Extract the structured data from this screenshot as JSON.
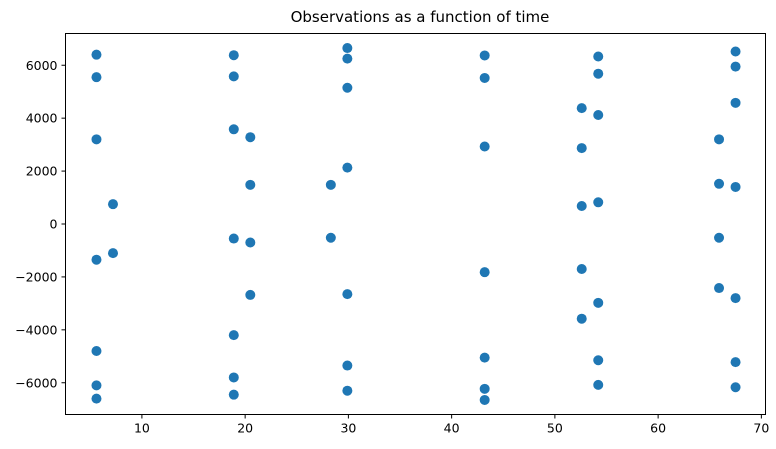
{
  "chart_data": {
    "type": "scatter",
    "title": "Observations as a function of time",
    "xlabel": "",
    "ylabel": "",
    "xlim": [
      2.6,
      70.4
    ],
    "ylim": [
      -7200,
      7200
    ],
    "xticks": [
      10,
      20,
      30,
      40,
      50,
      60,
      70
    ],
    "yticks": [
      -6000,
      -4000,
      -2000,
      0,
      2000,
      4000,
      6000
    ],
    "grid": false,
    "legend": "none",
    "marker_color": "#1f77b4",
    "points": [
      [
        5.6,
        6400
      ],
      [
        5.6,
        5550
      ],
      [
        5.6,
        3200
      ],
      [
        5.6,
        -1350
      ],
      [
        5.6,
        -4800
      ],
      [
        5.6,
        -6100
      ],
      [
        5.6,
        -6600
      ],
      [
        7.2,
        750
      ],
      [
        7.2,
        -1100
      ],
      [
        18.9,
        6380
      ],
      [
        18.9,
        5580
      ],
      [
        18.9,
        3580
      ],
      [
        18.9,
        -550
      ],
      [
        18.9,
        -4200
      ],
      [
        18.9,
        -5800
      ],
      [
        18.9,
        -6450
      ],
      [
        20.5,
        3280
      ],
      [
        20.5,
        1480
      ],
      [
        20.5,
        -700
      ],
      [
        20.5,
        -2680
      ],
      [
        28.3,
        1480
      ],
      [
        28.3,
        -520
      ],
      [
        29.9,
        6650
      ],
      [
        29.9,
        6250
      ],
      [
        29.9,
        5150
      ],
      [
        29.9,
        2130
      ],
      [
        29.9,
        -2650
      ],
      [
        29.9,
        -5350
      ],
      [
        29.9,
        -6300
      ],
      [
        43.2,
        6370
      ],
      [
        43.2,
        5520
      ],
      [
        43.2,
        2930
      ],
      [
        43.2,
        -1820
      ],
      [
        43.2,
        -5050
      ],
      [
        43.2,
        -6230
      ],
      [
        43.2,
        -6650
      ],
      [
        52.6,
        4380
      ],
      [
        52.6,
        2870
      ],
      [
        52.6,
        680
      ],
      [
        52.6,
        -1700
      ],
      [
        52.6,
        -3580
      ],
      [
        54.2,
        6330
      ],
      [
        54.2,
        5680
      ],
      [
        54.2,
        4120
      ],
      [
        54.2,
        820
      ],
      [
        54.2,
        -2980
      ],
      [
        54.2,
        -5150
      ],
      [
        54.2,
        -6080
      ],
      [
        65.9,
        3200
      ],
      [
        65.9,
        1520
      ],
      [
        65.9,
        -520
      ],
      [
        65.9,
        -2420
      ],
      [
        67.5,
        6520
      ],
      [
        67.5,
        5950
      ],
      [
        67.5,
        4580
      ],
      [
        67.5,
        1400
      ],
      [
        67.5,
        -2800
      ],
      [
        67.5,
        -5220
      ],
      [
        67.5,
        -6170
      ]
    ]
  }
}
